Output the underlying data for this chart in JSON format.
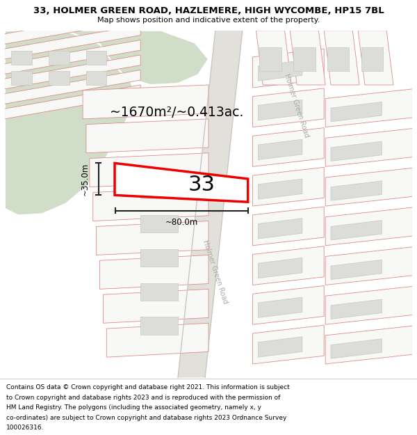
{
  "title_line1": "33, HOLMER GREEN ROAD, HAZLEMERE, HIGH WYCOMBE, HP15 7BL",
  "title_line2": "Map shows position and indicative extent of the property.",
  "footer_text": "Contains OS data © Crown copyright and database right 2021. This information is subject to Crown copyright and database rights 2023 and is reproduced with the permission of HM Land Registry. The polygons (including the associated geometry, namely x, y co-ordinates) are subject to Crown copyright and database rights 2023 Ordnance Survey 100026316.",
  "bg_color": "#f0efec",
  "green_color": "#d0ddc8",
  "road_bg_color": "#e2e0da",
  "road_edge_color": "#c8c6be",
  "parcel_edge": "#e08888",
  "parcel_fill": "#f8f8f6",
  "building_fill": "#dcdcd8",
  "building_edge": "#c8c8c4",
  "highlight_edge": "#ee0000",
  "highlight_fill": "#ffffff",
  "dim_color": "#222222",
  "road_text_color": "#aaaaaa",
  "label_33": "33",
  "area_label": "~1670m²/~0.413ac.",
  "dim_v": "~35.0m",
  "dim_h": "~80.0m",
  "road_name": "Holmer Green Road"
}
